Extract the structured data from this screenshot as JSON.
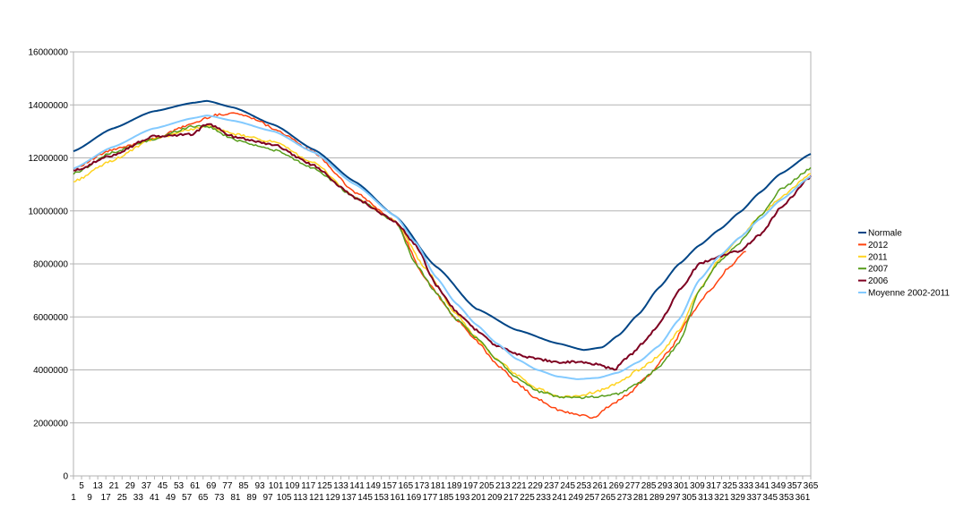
{
  "chart_data": {
    "type": "line",
    "title": "",
    "xlabel": "",
    "ylabel": "",
    "ylim": [
      0,
      16000000
    ],
    "xlim": [
      1,
      365
    ],
    "y_ticks": [
      "0",
      "2000000",
      "4000000",
      "6000000",
      "8000000",
      "10000000",
      "12000000",
      "14000000",
      "16000000"
    ],
    "x_ticks_upper": [
      "5",
      "13",
      "21",
      "29",
      "37",
      "45",
      "53",
      "61",
      "69",
      "77",
      "85",
      "93",
      "101",
      "109",
      "117",
      "125",
      "133",
      "141",
      "149",
      "157",
      "165",
      "173",
      "181",
      "189",
      "197",
      "205",
      "213",
      "221",
      "229",
      "237",
      "245",
      "253",
      "261",
      "269",
      "277",
      "285",
      "293",
      "301",
      "309",
      "317",
      "325",
      "333",
      "341",
      "349",
      "357",
      "365"
    ],
    "x_ticks_lower": [
      "1",
      "9",
      "17",
      "25",
      "33",
      "41",
      "49",
      "57",
      "65",
      "73",
      "81",
      "89",
      "97",
      "105",
      "113",
      "121",
      "129",
      "137",
      "145",
      "153",
      "161",
      "169",
      "177",
      "185",
      "193",
      "201",
      "209",
      "217",
      "225",
      "233",
      "241",
      "249",
      "257",
      "265",
      "273",
      "281",
      "289",
      "297",
      "305",
      "313",
      "321",
      "329",
      "337",
      "345",
      "353",
      "361"
    ],
    "grid": true,
    "legend_position": "right",
    "series": [
      {
        "name": "Normale",
        "color": "#004586",
        "width": 2,
        "x": [
          1,
          20,
          40,
          60,
          67,
          80,
          100,
          120,
          140,
          160,
          180,
          200,
          220,
          240,
          253,
          262,
          270,
          280,
          290,
          300,
          310,
          320,
          330,
          340,
          350,
          365
        ],
        "values": [
          12250000,
          13100000,
          13750000,
          14080000,
          14150000,
          13900000,
          13250000,
          12300000,
          11100000,
          9800000,
          7900000,
          6300000,
          5500000,
          5000000,
          4750000,
          4850000,
          5300000,
          6100000,
          7100000,
          8000000,
          8700000,
          9300000,
          9950000,
          10700000,
          11400000,
          12150000
        ]
      },
      {
        "name": "2012",
        "color": "#ff420e",
        "width": 1.5,
        "x": [
          1,
          20,
          40,
          60,
          70,
          80,
          90,
          100,
          120,
          140,
          160,
          175,
          190,
          200,
          210,
          220,
          230,
          240,
          250,
          258,
          265,
          275,
          285,
          295,
          305,
          315,
          325,
          333
        ],
        "values": [
          11600000,
          12300000,
          12700000,
          13300000,
          13600000,
          13700000,
          13500000,
          13100000,
          12200000,
          10700000,
          9600000,
          7400000,
          5900000,
          5100000,
          4200000,
          3500000,
          2900000,
          2500000,
          2300000,
          2200000,
          2600000,
          3100000,
          3800000,
          4700000,
          6000000,
          7000000,
          7900000,
          8500000
        ]
      },
      {
        "name": "2011",
        "color": "#ffd320",
        "width": 1.5,
        "x": [
          1,
          20,
          40,
          60,
          67,
          80,
          100,
          120,
          140,
          160,
          175,
          190,
          200,
          210,
          220,
          230,
          240,
          250,
          260,
          270,
          280,
          290,
          300,
          310,
          320,
          330,
          340,
          350,
          365
        ],
        "values": [
          11100000,
          11900000,
          12700000,
          13100000,
          13200000,
          12900000,
          12600000,
          11800000,
          10500000,
          9600000,
          7800000,
          6100000,
          5200000,
          4400000,
          3800000,
          3300000,
          3000000,
          3000000,
          3200000,
          3500000,
          4000000,
          4500000,
          5500000,
          7000000,
          8200000,
          9000000,
          9800000,
          10500000,
          11400000
        ]
      },
      {
        "name": "2007",
        "color": "#579d1c",
        "width": 1.5,
        "x": [
          1,
          20,
          40,
          60,
          67,
          80,
          100,
          120,
          140,
          160,
          170,
          180,
          190,
          200,
          210,
          220,
          230,
          240,
          250,
          260,
          270,
          280,
          290,
          300,
          310,
          320,
          330,
          340,
          350,
          365
        ],
        "values": [
          11400000,
          12200000,
          12700000,
          13200000,
          13200000,
          12700000,
          12300000,
          11600000,
          10500000,
          9600000,
          8000000,
          6900000,
          5900000,
          5200000,
          4400000,
          3700000,
          3200000,
          3000000,
          2950000,
          3000000,
          3100000,
          3500000,
          4100000,
          5000000,
          7000000,
          8100000,
          8800000,
          9800000,
          10800000,
          11600000
        ]
      },
      {
        "name": "2006",
        "color": "#7e0021",
        "width": 2,
        "x": [
          1,
          20,
          40,
          60,
          67,
          80,
          100,
          120,
          140,
          160,
          170,
          180,
          190,
          200,
          210,
          220,
          230,
          240,
          250,
          260,
          268,
          275,
          282,
          290,
          300,
          310,
          320,
          330,
          340,
          350,
          365
        ],
        "values": [
          11500000,
          12100000,
          12800000,
          12900000,
          13300000,
          12800000,
          12500000,
          11700000,
          10500000,
          9600000,
          8700000,
          7200000,
          6200000,
          5500000,
          4900000,
          4600000,
          4400000,
          4300000,
          4300000,
          4200000,
          4000000,
          4500000,
          5000000,
          5700000,
          7000000,
          8000000,
          8300000,
          8500000,
          9100000,
          10100000,
          11300000
        ]
      },
      {
        "name": "Moyenne 2002-2011",
        "color": "#83caff",
        "width": 2,
        "x": [
          1,
          20,
          40,
          60,
          67,
          80,
          100,
          120,
          140,
          160,
          170,
          180,
          190,
          200,
          210,
          220,
          230,
          240,
          250,
          260,
          270,
          280,
          290,
          300,
          310,
          320,
          330,
          340,
          350,
          365
        ],
        "values": [
          11600000,
          12400000,
          13100000,
          13500000,
          13600000,
          13400000,
          13000000,
          12200000,
          11000000,
          9800000,
          8800000,
          7500000,
          6500000,
          5700000,
          5000000,
          4400000,
          4000000,
          3750000,
          3650000,
          3700000,
          3900000,
          4300000,
          4900000,
          5900000,
          7400000,
          8300000,
          9000000,
          9700000,
          10400000,
          11300000
        ]
      }
    ]
  }
}
